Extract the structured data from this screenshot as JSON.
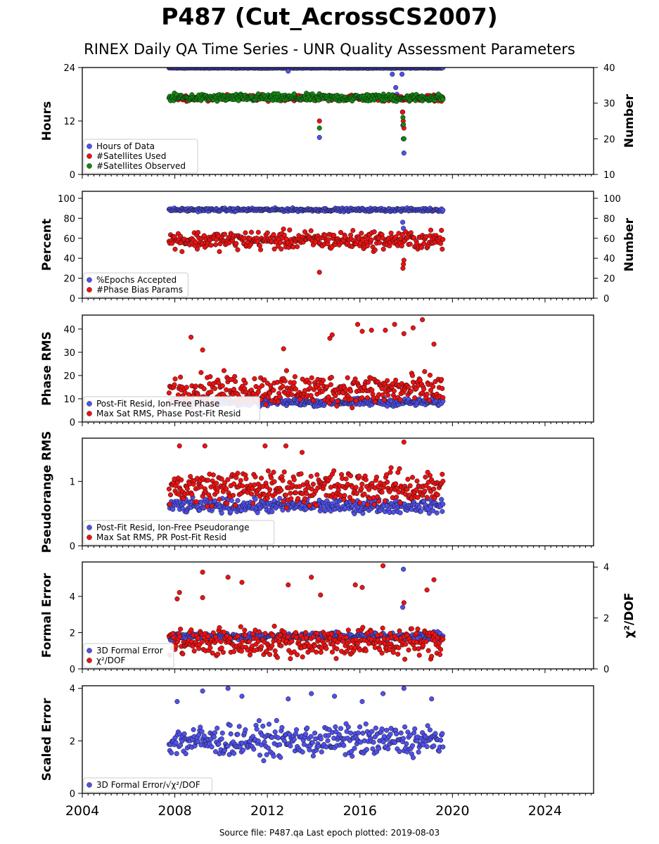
{
  "header": {
    "title": "P487 (Cut_AcrossCS2007)",
    "subtitle": "RINEX Daily QA Time Series - UNR Quality Assessment Parameters"
  },
  "footer": {
    "text": "Source file: P487.qa Last epoch plotted: 2019-08-03"
  },
  "colors": {
    "blue": "#5050ee",
    "red": "#ee1111",
    "green": "#118811",
    "edge": "#111111"
  },
  "chart_data": [
    {
      "type": "scatter",
      "ylabel": "Hours",
      "ylabel_right": "Number",
      "ylim": [
        0,
        24
      ],
      "yticks": [
        0,
        12,
        24
      ],
      "ylim_right": [
        10,
        40
      ],
      "yticks_right": [
        10,
        20,
        30,
        40
      ],
      "legend_placement": "lower-left",
      "series": [
        {
          "name": "Hours of Data",
          "color": "blue",
          "axis": "left",
          "typical": 23.9,
          "spread": 0.05,
          "outliers": [
            [
              2012.9,
              23.2
            ],
            [
              2014.25,
              8.3
            ],
            [
              2017.4,
              22.5
            ],
            [
              2017.55,
              19.5
            ],
            [
              2017.6,
              18.0
            ],
            [
              2017.82,
              22.5
            ],
            [
              2017.84,
              14.0
            ],
            [
              2017.86,
              11.0
            ],
            [
              2017.88,
              8.0
            ],
            [
              2017.9,
              4.8
            ]
          ]
        },
        {
          "name": "#Satellites Used",
          "color": "red",
          "axis": "right",
          "typical": 31.5,
          "spread": 0.6,
          "outliers": [
            [
              2014.25,
              25.0
            ],
            [
              2017.85,
              27.5
            ],
            [
              2017.87,
              25.0
            ],
            [
              2017.9,
              23.0
            ],
            [
              2017.9,
              20.0
            ]
          ]
        },
        {
          "name": "#Satellites Observed",
          "color": "green",
          "axis": "right",
          "typical": 31.5,
          "spread": 0.8,
          "outliers": [
            [
              2014.25,
              23.0
            ],
            [
              2017.86,
              26.0
            ],
            [
              2017.88,
              24.0
            ],
            [
              2017.9,
              20.0
            ]
          ]
        }
      ]
    },
    {
      "type": "scatter",
      "ylabel": "Percent",
      "ylabel_right": "Number",
      "ylim": [
        0,
        107
      ],
      "yticks": [
        0,
        20,
        40,
        60,
        80,
        100
      ],
      "ylim_right": [
        0,
        107
      ],
      "yticks_right": [
        0,
        20,
        40,
        60,
        80,
        100
      ],
      "legend_placement": "lower-left",
      "series": [
        {
          "name": "%Epochs Accepted",
          "color": "blue",
          "axis": "left",
          "typical": 88.5,
          "spread": 1.2,
          "outliers": [
            [
              2017.85,
              76.0
            ],
            [
              2017.88,
              70.0
            ]
          ]
        },
        {
          "name": "#Phase Bias Params",
          "color": "red",
          "axis": "right",
          "typical": 58,
          "spread": 7,
          "outliers": [
            [
              2014.25,
              26.0
            ],
            [
              2017.86,
              30.0
            ],
            [
              2017.88,
              34.0
            ],
            [
              2017.9,
              38.0
            ]
          ]
        }
      ]
    },
    {
      "type": "scatter",
      "ylabel": "Phase RMS",
      "ylim": [
        0,
        46
      ],
      "yticks": [
        0,
        10,
        20,
        30,
        40
      ],
      "legend_placement": "lower-left",
      "series": [
        {
          "name": "Post-Fit Resid, Ion-Free Phase",
          "color": "blue",
          "axis": "left",
          "typical": 8.5,
          "spread": 1.2,
          "outliers": []
        },
        {
          "name": "Max Sat RMS, Phase Post-Fit Resid",
          "color": "red",
          "axis": "left",
          "typical": 14,
          "spread": 5,
          "outliers": [
            [
              2008.7,
              36.5
            ],
            [
              2009.2,
              31.0
            ],
            [
              2012.7,
              31.5
            ],
            [
              2014.7,
              36.0
            ],
            [
              2014.8,
              37.5
            ],
            [
              2015.9,
              42.0
            ],
            [
              2016.1,
              39.0
            ],
            [
              2016.5,
              39.5
            ],
            [
              2017.1,
              39.5
            ],
            [
              2017.5,
              42.0
            ],
            [
              2017.9,
              38.0
            ],
            [
              2018.3,
              40.5
            ],
            [
              2018.7,
              44.0
            ],
            [
              2019.2,
              33.5
            ]
          ]
        }
      ]
    },
    {
      "type": "scatter",
      "ylabel": "Pseudorange RMS",
      "ylim": [
        0,
        1.67
      ],
      "yticks": [
        0,
        1
      ],
      "legend_placement": "lower-left",
      "series": [
        {
          "name": "Post-Fit Resid, Ion-Free Pseudorange",
          "color": "blue",
          "axis": "left",
          "typical": 0.62,
          "spread": 0.08,
          "outliers": []
        },
        {
          "name": "Max Sat RMS, PR Post-Fit Resid",
          "color": "red",
          "axis": "left",
          "typical": 0.9,
          "spread": 0.2,
          "outliers": [
            [
              2008.2,
              1.55
            ],
            [
              2009.3,
              1.55
            ],
            [
              2011.9,
              1.55
            ],
            [
              2012.8,
              1.55
            ],
            [
              2013.5,
              1.45
            ],
            [
              2017.9,
              1.61
            ]
          ]
        }
      ]
    },
    {
      "type": "scatter",
      "ylabel": "Formal Error",
      "ylabel_right": "χ²/DOF",
      "ylim": [
        0,
        5.9
      ],
      "yticks": [
        0,
        2,
        4
      ],
      "ylim_right": [
        0,
        4.2
      ],
      "yticks_right": [
        0,
        2,
        4
      ],
      "legend_placement": "lower-left",
      "series": [
        {
          "name": "3D Formal Error",
          "color": "blue",
          "axis": "left",
          "typical": 1.8,
          "spread": 0.15,
          "outliers": [
            [
              2017.85,
              3.4
            ],
            [
              2017.88,
              5.5
            ]
          ]
        },
        {
          "name": "χ²/DOF",
          "color": "red",
          "axis": "right",
          "typical": 1.05,
          "spread": 0.45,
          "outliers": [
            [
              2008.1,
              2.75
            ],
            [
              2008.2,
              3.0
            ],
            [
              2009.2,
              3.8
            ],
            [
              2009.2,
              2.8
            ],
            [
              2010.3,
              3.6
            ],
            [
              2010.9,
              3.4
            ],
            [
              2012.9,
              3.3
            ],
            [
              2013.9,
              3.6
            ],
            [
              2014.3,
              2.9
            ],
            [
              2015.8,
              3.3
            ],
            [
              2016.1,
              3.2
            ],
            [
              2017.0,
              4.05
            ],
            [
              2017.9,
              2.6
            ],
            [
              2018.9,
              3.1
            ],
            [
              2019.2,
              3.5
            ]
          ]
        }
      ]
    },
    {
      "type": "scatter",
      "ylabel": "Scaled Error",
      "ylim": [
        0,
        4.1
      ],
      "yticks": [
        0,
        2,
        4
      ],
      "legend_placement": "lower-left",
      "series": [
        {
          "name": "3D Formal Error/√χ²/DOF",
          "color": "blue",
          "axis": "left",
          "typical": 2.0,
          "spread": 0.45,
          "outliers": [
            [
              2008.1,
              3.5
            ],
            [
              2009.2,
              3.9
            ],
            [
              2010.3,
              4.0
            ],
            [
              2010.9,
              3.7
            ],
            [
              2012.9,
              3.6
            ],
            [
              2013.9,
              3.8
            ],
            [
              2014.9,
              3.7
            ],
            [
              2016.1,
              3.5
            ],
            [
              2017.0,
              3.8
            ],
            [
              2017.9,
              4.0
            ],
            [
              2019.1,
              3.6
            ]
          ]
        }
      ]
    }
  ],
  "shared_x": {
    "xlim": [
      2004,
      2026.1
    ],
    "xticks": [
      2004,
      2008,
      2012,
      2016,
      2020,
      2024
    ],
    "data_start": 2007.75,
    "data_end": 2019.59
  }
}
